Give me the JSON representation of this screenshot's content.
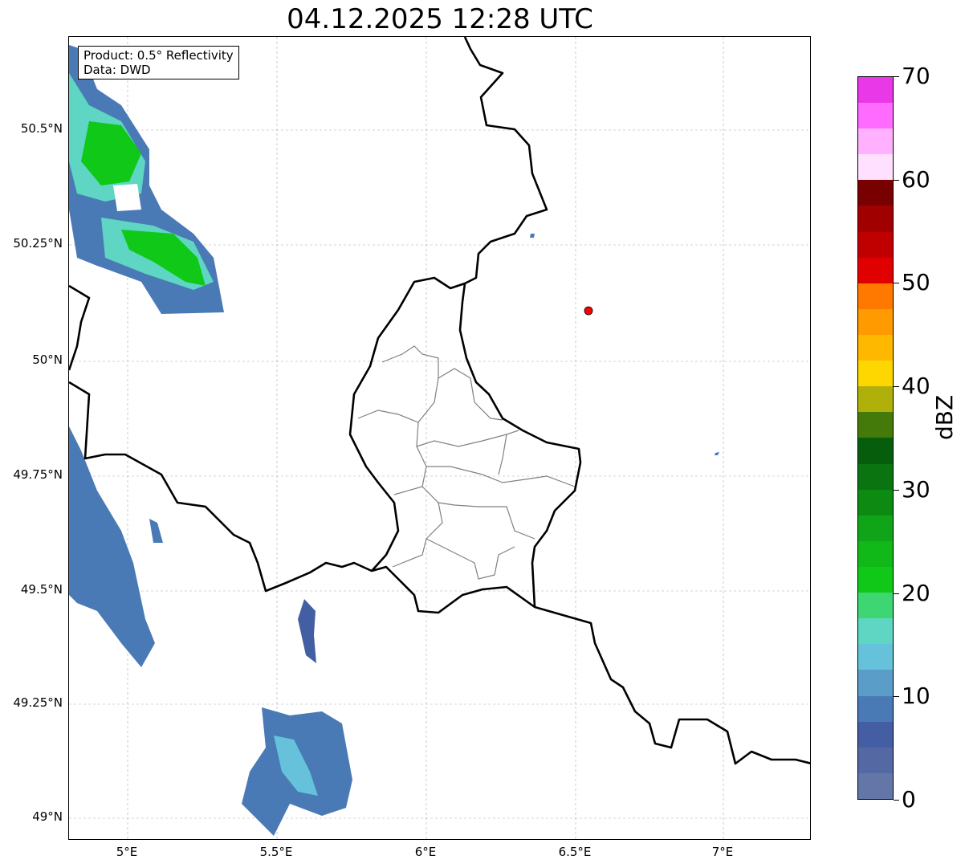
{
  "title": "04.12.2025 12:28 UTC",
  "legend": {
    "product": "Product: 0.5° Reflectivity",
    "data": "Data: DWD"
  },
  "lat_ticks": [
    "50.5°N",
    "50.25°N",
    "50°N",
    "49.75°N",
    "49.5°N",
    "49.25°N",
    "49°N"
  ],
  "lon_ticks": [
    "5°E",
    "5.5°E",
    "6°E",
    "6.5°E",
    "7°E"
  ],
  "colorbar": {
    "label": "dBZ",
    "ticks": [
      "0",
      "10",
      "20",
      "30",
      "40",
      "50",
      "60",
      "70"
    ],
    "range": [
      0,
      70
    ],
    "step": 2.5,
    "colors": [
      "#6475a8",
      "#5469a3",
      "#445ea3",
      "#4a7ab5",
      "#5a9dc8",
      "#65c2da",
      "#5fd6c4",
      "#3dd672",
      "#10c818",
      "#10b818",
      "#10a418",
      "#0c8a12",
      "#0a7510",
      "#065e0c",
      "#447a0a",
      "#b0b00a",
      "#ffd700",
      "#ffb800",
      "#ff9a00",
      "#ff7800",
      "#e00000",
      "#c00000",
      "#a00000",
      "#780000",
      "#ffe0ff",
      "#ffb0ff",
      "#ff6aff",
      "#e838e8"
    ]
  },
  "colors": {
    "marker": "#ff0000",
    "border": "#000000",
    "admin": "#808080"
  }
}
